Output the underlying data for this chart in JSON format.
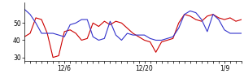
{
  "xlabels": [
    "12/6",
    "12/20",
    "1/9"
  ],
  "xtick_positions": [
    7,
    21,
    35
  ],
  "ylim": [
    28,
    62
  ],
  "yticks": [
    30,
    40,
    50
  ],
  "red_line": [
    42,
    44,
    53,
    52,
    44,
    30,
    31,
    45,
    46,
    44,
    40,
    41,
    50,
    48,
    51,
    49,
    51,
    50,
    47,
    44,
    42,
    40,
    39,
    33,
    39,
    40,
    41,
    50,
    55,
    54,
    52,
    51,
    54,
    55,
    53,
    52,
    53,
    51,
    52
  ],
  "blue_line": [
    58,
    55,
    50,
    44,
    44,
    44,
    43,
    42,
    49,
    50,
    52,
    52,
    42,
    40,
    41,
    51,
    43,
    40,
    44,
    43,
    43,
    43,
    41,
    40,
    40,
    41,
    42,
    47,
    55,
    57,
    56,
    52,
    45,
    55,
    52,
    46,
    44,
    44,
    44
  ],
  "line_color_red": "#cc0000",
  "line_color_blue": "#3333cc",
  "bg_color": "#ffffff",
  "linewidth": 0.8
}
